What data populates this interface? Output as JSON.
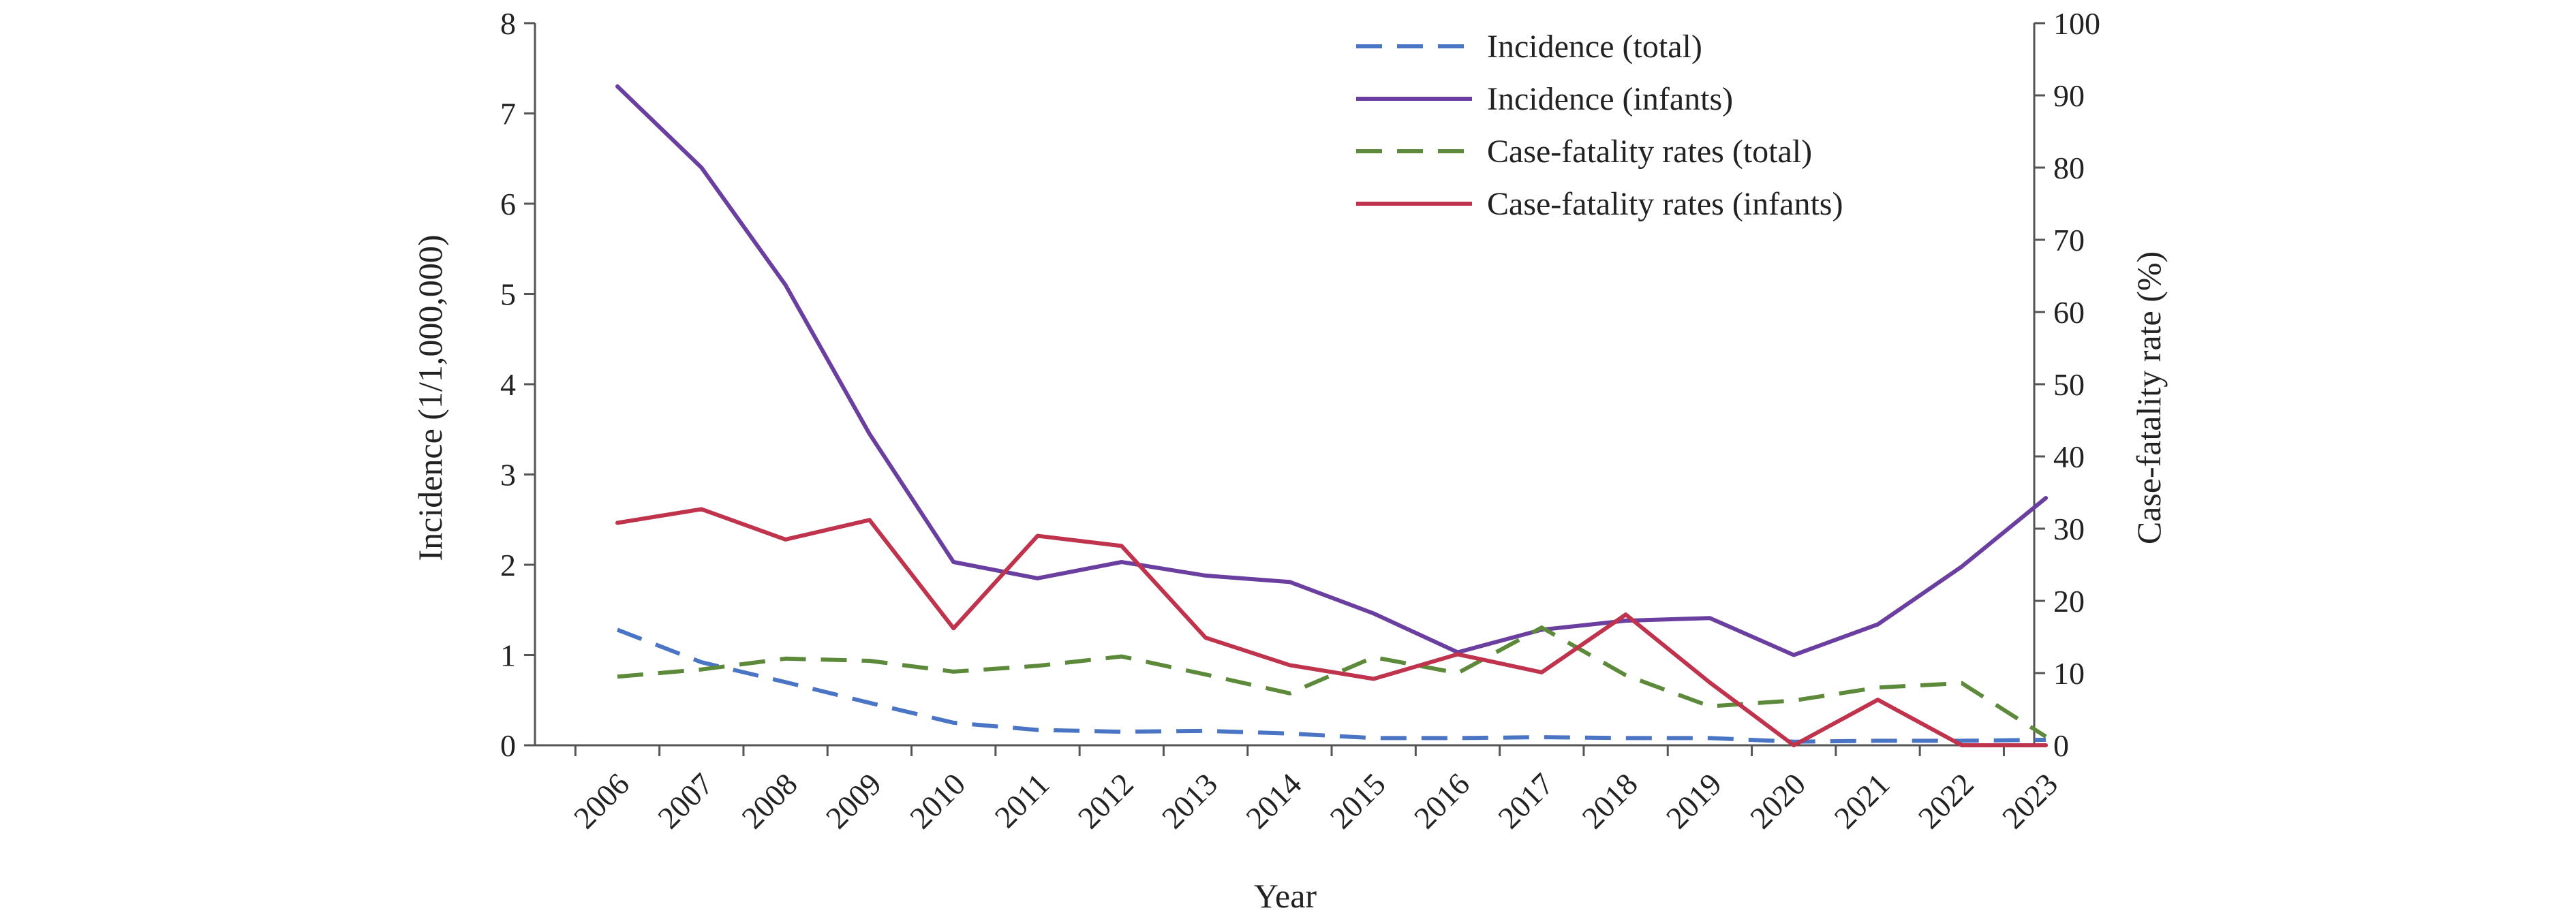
{
  "chart_data": {
    "type": "line",
    "xlabel": "Year",
    "ylabel_left": "Incidence (1/1,000,000)",
    "ylabel_right": "Case-fatality rate (%)",
    "ylim_left": [
      0,
      8
    ],
    "ylim_right": [
      0,
      100
    ],
    "yticks_left": [
      "0",
      "1",
      "2",
      "3",
      "4",
      "5",
      "6",
      "7",
      "8"
    ],
    "yticks_right": [
      "0",
      "10",
      "20",
      "30",
      "40",
      "50",
      "60",
      "70",
      "80",
      "90",
      "100"
    ],
    "grid": false,
    "legend_position": "top-right",
    "categories": [
      "2006",
      "2007",
      "2008",
      "2009",
      "2010",
      "2011",
      "2012",
      "2013",
      "2014",
      "2015",
      "2016",
      "2017",
      "2018",
      "2019",
      "2020",
      "2021",
      "2022",
      "2023"
    ],
    "series": [
      {
        "name": "Incidence (total)",
        "axis": "left",
        "style": "dashed",
        "color": "#4a74c4",
        "values": [
          1.28,
          0.92,
          0.7,
          0.47,
          0.25,
          0.17,
          0.15,
          0.16,
          0.13,
          0.08,
          0.08,
          0.09,
          0.08,
          0.08,
          0.04,
          0.05,
          0.05,
          0.06
        ]
      },
      {
        "name": "Incidence (infants)",
        "axis": "left",
        "style": "solid",
        "color": "#6a3fa0",
        "values": [
          7.3,
          6.4,
          5.1,
          3.45,
          2.03,
          1.85,
          2.03,
          1.88,
          1.81,
          1.46,
          1.03,
          1.28,
          1.38,
          1.41,
          1.0,
          1.34,
          1.98,
          2.74
        ]
      },
      {
        "name": "Case-fatality rates (total)",
        "axis": "right",
        "style": "dashed",
        "color": "#5d8a3a",
        "values": [
          9.5,
          10.5,
          12.0,
          11.7,
          10.2,
          11.0,
          12.3,
          9.8,
          7.2,
          12.2,
          10.0,
          16.3,
          9.7,
          5.4,
          6.2,
          8.0,
          8.6,
          1.2
        ]
      },
      {
        "name": "Case-fatality rates (infants)",
        "axis": "right",
        "style": "solid",
        "color": "#c0334d",
        "values": [
          30.8,
          32.7,
          28.5,
          31.2,
          16.2,
          29.0,
          27.6,
          14.9,
          11.1,
          9.2,
          12.6,
          10.1,
          18.1,
          8.7,
          0,
          6.3,
          0,
          0
        ]
      }
    ]
  }
}
